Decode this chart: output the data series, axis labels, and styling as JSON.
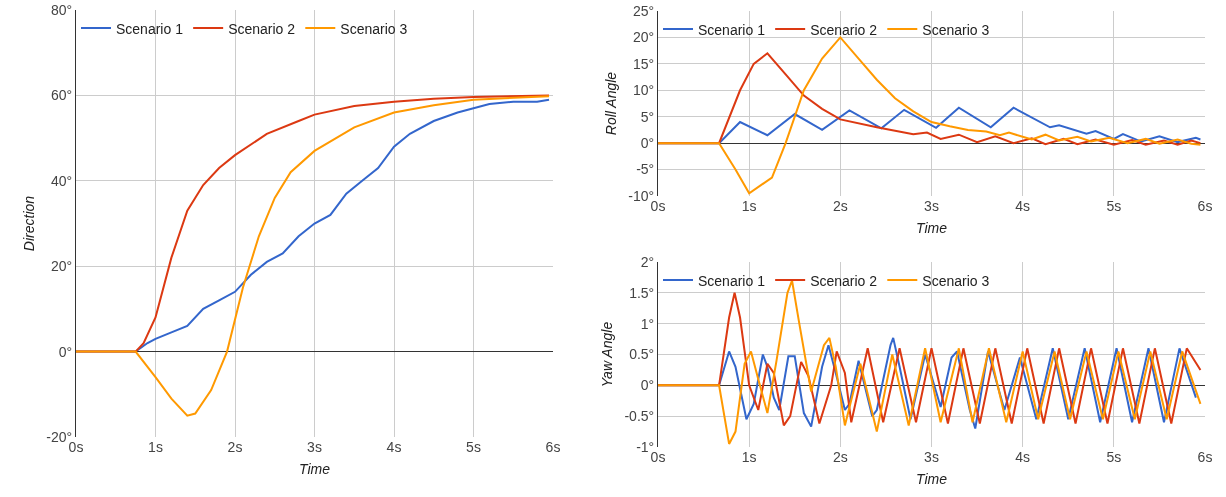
{
  "chart_data": [
    {
      "type": "line",
      "xlabel": "Time",
      "ylabel": "Direction",
      "xlim": [
        0,
        6
      ],
      "ylim": [
        -20,
        80
      ],
      "xticks": [
        {
          "value": 0,
          "label": "0s"
        },
        {
          "value": 1,
          "label": "1s"
        },
        {
          "value": 2,
          "label": "2s"
        },
        {
          "value": 3,
          "label": "3s"
        },
        {
          "value": 4,
          "label": "4s"
        },
        {
          "value": 5,
          "label": "5s"
        },
        {
          "value": 6,
          "label": "6s"
        }
      ],
      "yticks": [
        {
          "value": -20,
          "label": "-20°"
        },
        {
          "value": 0,
          "label": "0°"
        },
        {
          "value": 20,
          "label": "20°"
        },
        {
          "value": 40,
          "label": "40°"
        },
        {
          "value": 60,
          "label": "60°"
        },
        {
          "value": 80,
          "label": "80°"
        }
      ],
      "grid": true,
      "legend": "top left",
      "marker": "none",
      "line_style": "solid",
      "series": [
        {
          "name": "Scenario 1",
          "color": "#3366cc",
          "x": [
            0,
            0.75,
            0.9,
            1,
            1.2,
            1.4,
            1.6,
            1.8,
            2.0,
            2.2,
            2.4,
            2.6,
            2.8,
            3.0,
            3.2,
            3.4,
            3.6,
            3.8,
            4.0,
            4.2,
            4.5,
            4.8,
            5.0,
            5.2,
            5.5,
            5.8,
            5.95
          ],
          "values": [
            0,
            0,
            2,
            3,
            4.5,
            6,
            10,
            12,
            14,
            18,
            21,
            23,
            27,
            30,
            32,
            37,
            40,
            43,
            48,
            51,
            54,
            56,
            57,
            58,
            58.5,
            58.5,
            59
          ]
        },
        {
          "name": "Scenario 2",
          "color": "#dc3912",
          "x": [
            0,
            0.75,
            0.85,
            1,
            1.2,
            1.4,
            1.6,
            1.8,
            2.0,
            2.4,
            2.8,
            3.0,
            3.5,
            4.0,
            4.5,
            5.0,
            5.95
          ],
          "values": [
            0,
            0,
            2,
            8,
            22,
            33,
            39,
            43,
            46,
            51,
            54,
            55.5,
            57.5,
            58.5,
            59.2,
            59.6,
            60
          ]
        },
        {
          "name": "Scenario 3",
          "color": "#ff9900",
          "x": [
            0,
            0.75,
            1,
            1.2,
            1.4,
            1.5,
            1.7,
            1.9,
            2.1,
            2.3,
            2.5,
            2.7,
            3.0,
            3.5,
            4.0,
            4.5,
            5.0,
            5.95
          ],
          "values": [
            0,
            0,
            -6,
            -11,
            -15,
            -14.5,
            -9,
            0,
            15,
            27,
            36,
            42,
            47,
            52.5,
            56,
            57.7,
            59,
            59.8
          ]
        }
      ]
    },
    {
      "type": "line",
      "xlabel": "Time",
      "ylabel": "Roll Angle",
      "xlim": [
        0,
        6
      ],
      "ylim": [
        -10,
        25
      ],
      "xticks": [
        {
          "value": 0,
          "label": "0s"
        },
        {
          "value": 1,
          "label": "1s"
        },
        {
          "value": 2,
          "label": "2s"
        },
        {
          "value": 3,
          "label": "3s"
        },
        {
          "value": 4,
          "label": "4s"
        },
        {
          "value": 5,
          "label": "5s"
        },
        {
          "value": 6,
          "label": "6s"
        }
      ],
      "yticks": [
        {
          "value": -10,
          "label": "-10°"
        },
        {
          "value": -5,
          "label": "-5°"
        },
        {
          "value": 0,
          "label": "0°"
        },
        {
          "value": 5,
          "label": "5°"
        },
        {
          "value": 10,
          "label": "10°"
        },
        {
          "value": 15,
          "label": "15°"
        },
        {
          "value": 20,
          "label": "20°"
        },
        {
          "value": 25,
          "label": "25°"
        }
      ],
      "grid": true,
      "legend": "top left",
      "marker": "none",
      "line_style": "solid",
      "series": [
        {
          "name": "Scenario 1",
          "color": "#3366cc",
          "x": [
            0,
            0.67,
            0.9,
            1.2,
            1.5,
            1.8,
            2.1,
            2.45,
            2.7,
            3.05,
            3.3,
            3.65,
            3.9,
            4.3,
            4.4,
            4.7,
            4.8,
            5.0,
            5.1,
            5.3,
            5.5,
            5.7,
            5.9,
            5.95
          ],
          "values": [
            0,
            0,
            4,
            1.5,
            5.5,
            2.5,
            6.2,
            2.8,
            6.3,
            2.9,
            6.7,
            3,
            6.7,
            3,
            3.4,
            1.8,
            2.3,
            0.8,
            1.7,
            0.3,
            1.3,
            0.2,
            1,
            0.7
          ]
        },
        {
          "name": "Scenario 2",
          "color": "#dc3912",
          "x": [
            0,
            0.67,
            0.9,
            1.05,
            1.2,
            1.4,
            1.6,
            1.8,
            2.0,
            2.4,
            2.8,
            2.95,
            3.1,
            3.3,
            3.5,
            3.7,
            3.9,
            4.1,
            4.25,
            4.45,
            4.6,
            4.8,
            5.0,
            5.2,
            5.35,
            5.55,
            5.7,
            5.85,
            5.95
          ],
          "values": [
            0,
            0,
            10,
            15,
            17,
            13,
            9,
            6.5,
            4.5,
            3,
            1.7,
            2,
            0.8,
            1.6,
            0.2,
            1.3,
            0,
            0.9,
            -0.2,
            0.8,
            -0.2,
            0.7,
            -0.3,
            0.6,
            -0.3,
            0.5,
            -0.3,
            0.5,
            0
          ]
        },
        {
          "name": "Scenario 3",
          "color": "#ff9900",
          "x": [
            0,
            0.67,
            0.85,
            1.0,
            1.25,
            1.4,
            1.6,
            1.8,
            2.0,
            2.2,
            2.4,
            2.6,
            2.8,
            3.0,
            3.2,
            3.4,
            3.6,
            3.75,
            3.85,
            4.0,
            4.1,
            4.25,
            4.4,
            4.6,
            4.75,
            4.95,
            5.15,
            5.35,
            5.5,
            5.7,
            5.85,
            5.95
          ],
          "values": [
            0,
            0,
            -5,
            -9.5,
            -6.5,
            0,
            10,
            16,
            20,
            16,
            12,
            8.5,
            6,
            4,
            3.2,
            2.5,
            2.2,
            1.5,
            2,
            1.2,
            0.7,
            1.6,
            0.5,
            1.2,
            0.3,
            1,
            0,
            0.8,
            -0.1,
            0.7,
            -0.1,
            -0.3
          ]
        }
      ]
    },
    {
      "type": "line",
      "xlabel": "Time",
      "ylabel": "Yaw Angle",
      "xlim": [
        0,
        6
      ],
      "ylim": [
        -1,
        2
      ],
      "xticks": [
        {
          "value": 0,
          "label": "0s"
        },
        {
          "value": 1,
          "label": "1s"
        },
        {
          "value": 2,
          "label": "2s"
        },
        {
          "value": 3,
          "label": "3s"
        },
        {
          "value": 4,
          "label": "4s"
        },
        {
          "value": 5,
          "label": "5s"
        },
        {
          "value": 6,
          "label": "6s"
        }
      ],
      "yticks": [
        {
          "value": -1,
          "label": "-1°"
        },
        {
          "value": -0.5,
          "label": "-0.5°"
        },
        {
          "value": 0,
          "label": "0°"
        },
        {
          "value": 0.5,
          "label": "0.5°"
        },
        {
          "value": 1,
          "label": "1°"
        },
        {
          "value": 1.5,
          "label": "1.5°"
        },
        {
          "value": 2,
          "label": "2°"
        }
      ],
      "grid": true,
      "legend": "top left",
      "marker": "none",
      "line_style": "solid",
      "series": [
        {
          "name": "Scenario 1",
          "color": "#3366cc",
          "x": [
            0,
            0.67,
            0.78,
            0.85,
            0.97,
            1.05,
            1.15,
            1.2,
            1.27,
            1.33,
            1.43,
            1.5,
            1.6,
            1.68,
            1.8,
            1.87,
            1.95,
            2.05,
            2.1,
            2.2,
            2.35,
            2.4,
            2.55,
            2.58,
            2.65,
            2.77,
            2.93,
            3.1,
            3.22,
            3.28,
            3.42,
            3.48,
            3.62,
            3.8,
            3.97,
            4.15,
            4.33,
            4.5,
            4.68,
            4.85,
            5.03,
            5.2,
            5.38,
            5.55,
            5.72,
            5.9
          ],
          "values": [
            0,
            0,
            0.55,
            0.3,
            -0.55,
            -0.3,
            0.5,
            0.3,
            -0.2,
            -0.4,
            0.47,
            0.47,
            -0.45,
            -0.67,
            0.3,
            0.65,
            0.2,
            -0.4,
            -0.3,
            0.4,
            -0.5,
            -0.4,
            0.65,
            0.77,
            0.3,
            -0.55,
            0.5,
            -0.35,
            0.45,
            0.55,
            -0.4,
            -0.7,
            0.55,
            -0.4,
            0.45,
            -0.55,
            0.6,
            -0.55,
            0.6,
            -0.6,
            0.6,
            -0.6,
            0.6,
            -0.6,
            0.6,
            -0.2
          ]
        },
        {
          "name": "Scenario 2",
          "color": "#dc3912",
          "x": [
            0,
            0.67,
            0.78,
            0.84,
            0.9,
            1.0,
            1.1,
            1.2,
            1.27,
            1.38,
            1.45,
            1.57,
            1.65,
            1.77,
            1.9,
            1.96,
            2.05,
            2.12,
            2.3,
            2.47,
            2.65,
            2.83,
            3.0,
            3.18,
            3.35,
            3.53,
            3.7,
            3.88,
            4.05,
            4.23,
            4.4,
            4.58,
            4.75,
            4.93,
            5.1,
            5.28,
            5.45,
            5.63,
            5.8,
            5.95
          ],
          "values": [
            0,
            0,
            1.1,
            1.5,
            1.1,
            0,
            -0.4,
            0.35,
            0.2,
            -0.65,
            -0.5,
            0.38,
            0.15,
            -0.62,
            0,
            0.55,
            0.2,
            -0.6,
            0.6,
            -0.6,
            0.6,
            -0.6,
            0.6,
            -0.62,
            0.6,
            -0.62,
            0.6,
            -0.62,
            0.6,
            -0.62,
            0.6,
            -0.62,
            0.6,
            -0.62,
            0.6,
            -0.62,
            0.6,
            -0.62,
            0.6,
            0.25
          ]
        },
        {
          "name": "Scenario 3",
          "color": "#ff9900",
          "x": [
            0,
            0.67,
            0.78,
            0.85,
            0.95,
            1.02,
            1.1,
            1.2,
            1.3,
            1.42,
            1.47,
            1.55,
            1.68,
            1.82,
            1.88,
            1.95,
            2.05,
            2.22,
            2.4,
            2.57,
            2.75,
            2.93,
            3.1,
            3.3,
            3.45,
            3.63,
            3.82,
            4.0,
            4.17,
            4.35,
            4.52,
            4.7,
            4.88,
            5.05,
            5.23,
            5.4,
            5.58,
            5.75,
            5.95
          ],
          "values": [
            0,
            0,
            -0.95,
            -0.75,
            0.35,
            0.55,
            0.1,
            -0.45,
            0.4,
            1.5,
            1.7,
            1,
            -0.1,
            0.65,
            0.77,
            0.3,
            -0.65,
            0.35,
            -0.75,
            0.5,
            -0.65,
            0.6,
            -0.6,
            0.6,
            -0.6,
            0.6,
            -0.6,
            0.55,
            -0.55,
            0.55,
            -0.55,
            0.55,
            -0.55,
            0.55,
            -0.55,
            0.55,
            -0.55,
            0.55,
            -0.3
          ]
        }
      ]
    }
  ]
}
